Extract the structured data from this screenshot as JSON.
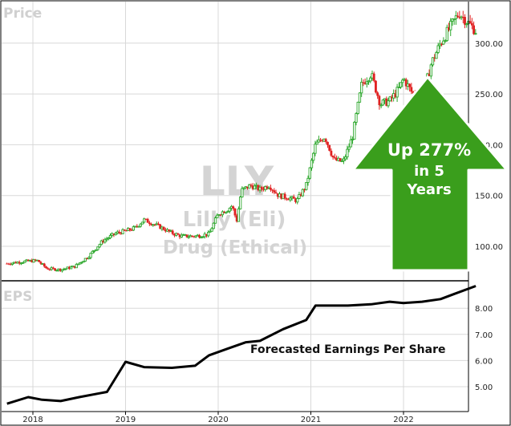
{
  "chart_data": {
    "type": "candlestick-line",
    "ticker": "LLY",
    "company": "Lilly (Eli)",
    "industry": "Drug (Ethical)",
    "x_ticks": [
      "2018",
      "2019",
      "2020",
      "2021",
      "2022"
    ],
    "price_panel": {
      "label": "Price",
      "y_ticks": [
        "100.00",
        "150.00",
        "200.00",
        "250.00",
        "300.00"
      ],
      "ylim": [
        75,
        345
      ],
      "grid": true,
      "series": [
        [
          2017.72,
          83
        ],
        [
          2017.9,
          85
        ],
        [
          2018.05,
          86
        ],
        [
          2018.15,
          78
        ],
        [
          2018.3,
          77
        ],
        [
          2018.45,
          80
        ],
        [
          2018.6,
          90
        ],
        [
          2018.75,
          105
        ],
        [
          2018.9,
          113
        ],
        [
          2019.0,
          115
        ],
        [
          2019.1,
          118
        ],
        [
          2019.2,
          126
        ],
        [
          2019.35,
          120
        ],
        [
          2019.5,
          113
        ],
        [
          2019.6,
          110
        ],
        [
          2019.75,
          110
        ],
        [
          2019.9,
          112
        ],
        [
          2020.0,
          132
        ],
        [
          2020.1,
          136
        ],
        [
          2020.15,
          140
        ],
        [
          2020.2,
          125
        ],
        [
          2020.25,
          155
        ],
        [
          2020.35,
          160
        ],
        [
          2020.45,
          156
        ],
        [
          2020.55,
          160
        ],
        [
          2020.65,
          150
        ],
        [
          2020.75,
          148
        ],
        [
          2020.85,
          145
        ],
        [
          2020.95,
          160
        ],
        [
          2021.05,
          200
        ],
        [
          2021.15,
          208
        ],
        [
          2021.25,
          185
        ],
        [
          2021.35,
          183
        ],
        [
          2021.45,
          208
        ],
        [
          2021.55,
          260
        ],
        [
          2021.65,
          270
        ],
        [
          2021.75,
          240
        ],
        [
          2021.85,
          243
        ],
        [
          2021.95,
          255
        ],
        [
          2022.0,
          265
        ],
        [
          2022.1,
          250
        ],
        [
          2022.2,
          245
        ],
        [
          2022.3,
          280
        ],
        [
          2022.4,
          300
        ],
        [
          2022.5,
          315
        ],
        [
          2022.6,
          330
        ],
        [
          2022.7,
          320
        ],
        [
          2022.78,
          312
        ]
      ]
    },
    "eps_panel": {
      "label": "EPS",
      "y_ticks": [
        "5.00",
        "6.00",
        "7.00",
        "8.00"
      ],
      "ylim": [
        4.25,
        8.95
      ],
      "grid": true,
      "annotation": "Forecasted Earnings Per Share",
      "series": [
        [
          2017.72,
          4.35
        ],
        [
          2017.95,
          4.6
        ],
        [
          2018.1,
          4.5
        ],
        [
          2018.3,
          4.45
        ],
        [
          2018.5,
          4.6
        ],
        [
          2018.8,
          4.8
        ],
        [
          2019.0,
          5.95
        ],
        [
          2019.2,
          5.75
        ],
        [
          2019.5,
          5.72
        ],
        [
          2019.75,
          5.8
        ],
        [
          2019.9,
          6.2
        ],
        [
          2020.1,
          6.45
        ],
        [
          2020.3,
          6.7
        ],
        [
          2020.45,
          6.75
        ],
        [
          2020.7,
          7.2
        ],
        [
          2020.95,
          7.55
        ],
        [
          2021.05,
          8.1
        ],
        [
          2021.4,
          8.1
        ],
        [
          2021.65,
          8.15
        ],
        [
          2021.85,
          8.25
        ],
        [
          2022.0,
          8.2
        ],
        [
          2022.2,
          8.25
        ],
        [
          2022.4,
          8.35
        ],
        [
          2022.55,
          8.55
        ],
        [
          2022.78,
          8.85
        ]
      ]
    },
    "arrow_callout": {
      "line1": "Up 277%",
      "line2": "in 5",
      "line3": "Years",
      "color": "#3a9e1c"
    },
    "colors": {
      "up": "#2ea82e",
      "down": "#e02020",
      "eps_line": "#000000",
      "grid": "#d8d8d8"
    }
  }
}
